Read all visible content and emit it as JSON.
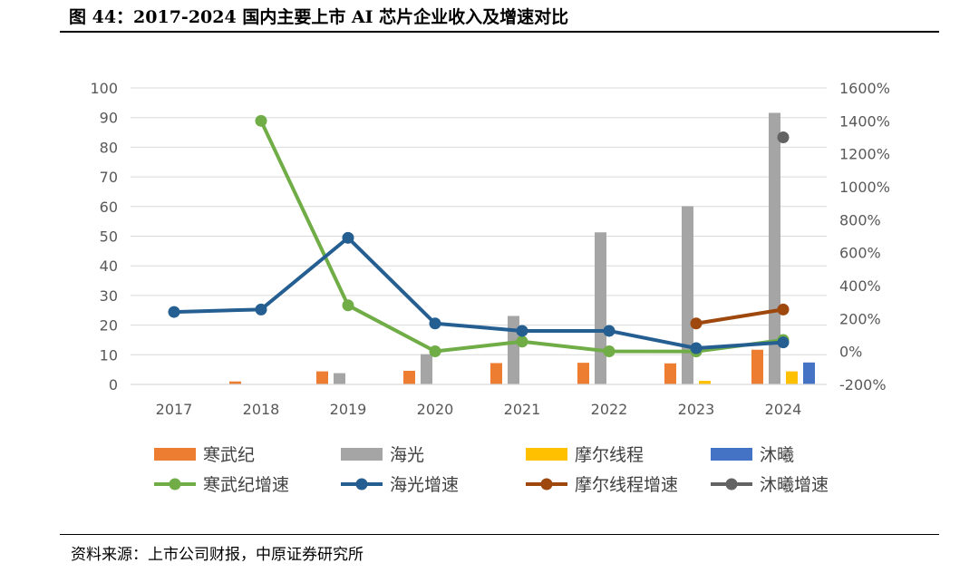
{
  "figure": {
    "title": "图 44：2017-2024 国内主要上市 AI 芯片企业收入及增速对比",
    "source": "资料来源：上市公司财报，中原证券研究所"
  },
  "chart_data": {
    "type": "bar",
    "title": "",
    "categories": [
      "2017",
      "2018",
      "2019",
      "2020",
      "2021",
      "2022",
      "2023",
      "2024"
    ],
    "y_left": {
      "min": 0,
      "max": 100,
      "step": 10,
      "ticks": [
        "0",
        "10",
        "20",
        "30",
        "40",
        "50",
        "60",
        "70",
        "80",
        "90",
        "100"
      ]
    },
    "y_right": {
      "min": -200,
      "max": 1600,
      "step": 200,
      "ticks": [
        "-200%",
        "0%",
        "200%",
        "400%",
        "600%",
        "800%",
        "1000%",
        "1200%",
        "1400%",
        "1600%"
      ]
    },
    "bar_series": [
      {
        "name": "寒武纪",
        "color": "#ED7D31",
        "values": [
          0,
          1,
          4.4,
          4.6,
          7.2,
          7.3,
          7.1,
          11.7
        ]
      },
      {
        "name": "海光",
        "color": "#A5A5A5",
        "values": [
          0,
          0,
          3.8,
          10.2,
          23.1,
          51.3,
          60.1,
          91.6
        ]
      },
      {
        "name": "摩尔线程",
        "color": "#FFC000",
        "values": [
          0,
          0,
          0,
          0,
          0,
          0,
          1.2,
          4.4
        ]
      },
      {
        "name": "沐曦",
        "color": "#4472C4",
        "values": [
          0,
          0,
          0,
          0,
          0,
          0,
          0,
          7.4
        ]
      }
    ],
    "line_series": [
      {
        "name": "寒武纪增速",
        "color": "#70AD47",
        "values": [
          null,
          1400,
          280,
          1,
          60,
          1,
          0,
          70
        ]
      },
      {
        "name": "海光增速",
        "color": "#255E91",
        "values": [
          240,
          255,
          690,
          170,
          125,
          125,
          20,
          55
        ]
      },
      {
        "name": "摩尔线程增速",
        "color": "#9E480E",
        "values": [
          null,
          null,
          null,
          null,
          null,
          null,
          170,
          255
        ]
      },
      {
        "name": "沐曦增速",
        "color": "#636363",
        "values": [
          null,
          null,
          null,
          null,
          null,
          null,
          null,
          1300
        ]
      }
    ],
    "legend": {
      "position": "bottom",
      "items": [
        "寒武纪",
        "海光",
        "摩尔线程",
        "沐曦",
        "寒武纪增速",
        "海光增速",
        "摩尔线程增速",
        "沐曦增速"
      ]
    },
    "grid": true
  }
}
